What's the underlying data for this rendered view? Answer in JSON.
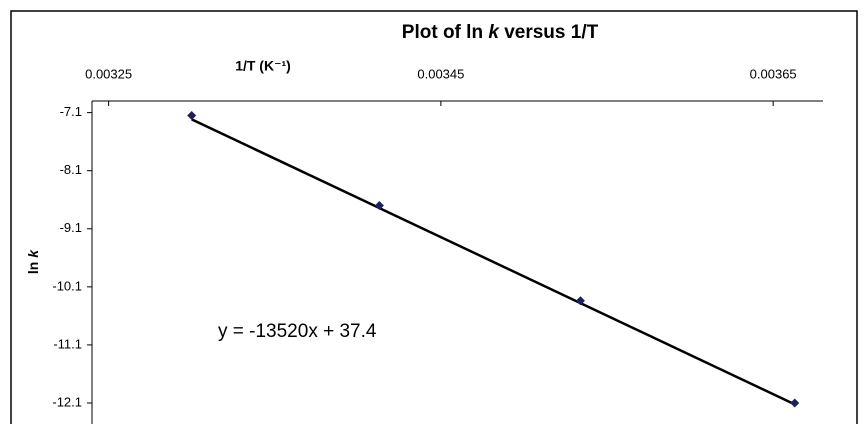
{
  "chart_data": {
    "type": "scatter",
    "title": "Plot of ln k versus 1/T",
    "xlabel": "1/T (K⁻¹)",
    "ylabel": "ln k",
    "series": [
      {
        "name": null,
        "color": "#1f1f5f",
        "x": [
          0.0033,
          0.003413,
          0.003534,
          0.003663
        ],
        "values": [
          -7.15,
          -8.7,
          -10.34,
          -12.1
        ]
      }
    ],
    "trendline": {
      "slope": -13520,
      "intercept": 37.4,
      "label": "y = -13520x + 37.4"
    },
    "xlim": [
      0.00324,
      0.00368
    ],
    "xticks": [
      0.00325,
      0.00345,
      0.00365
    ],
    "ylim": [
      -12.1,
      -6.9
    ],
    "yticks": [
      -7.1,
      -8.1,
      -9.1,
      -10.1,
      -11.1,
      -12.1
    ],
    "italic_word": "k"
  }
}
